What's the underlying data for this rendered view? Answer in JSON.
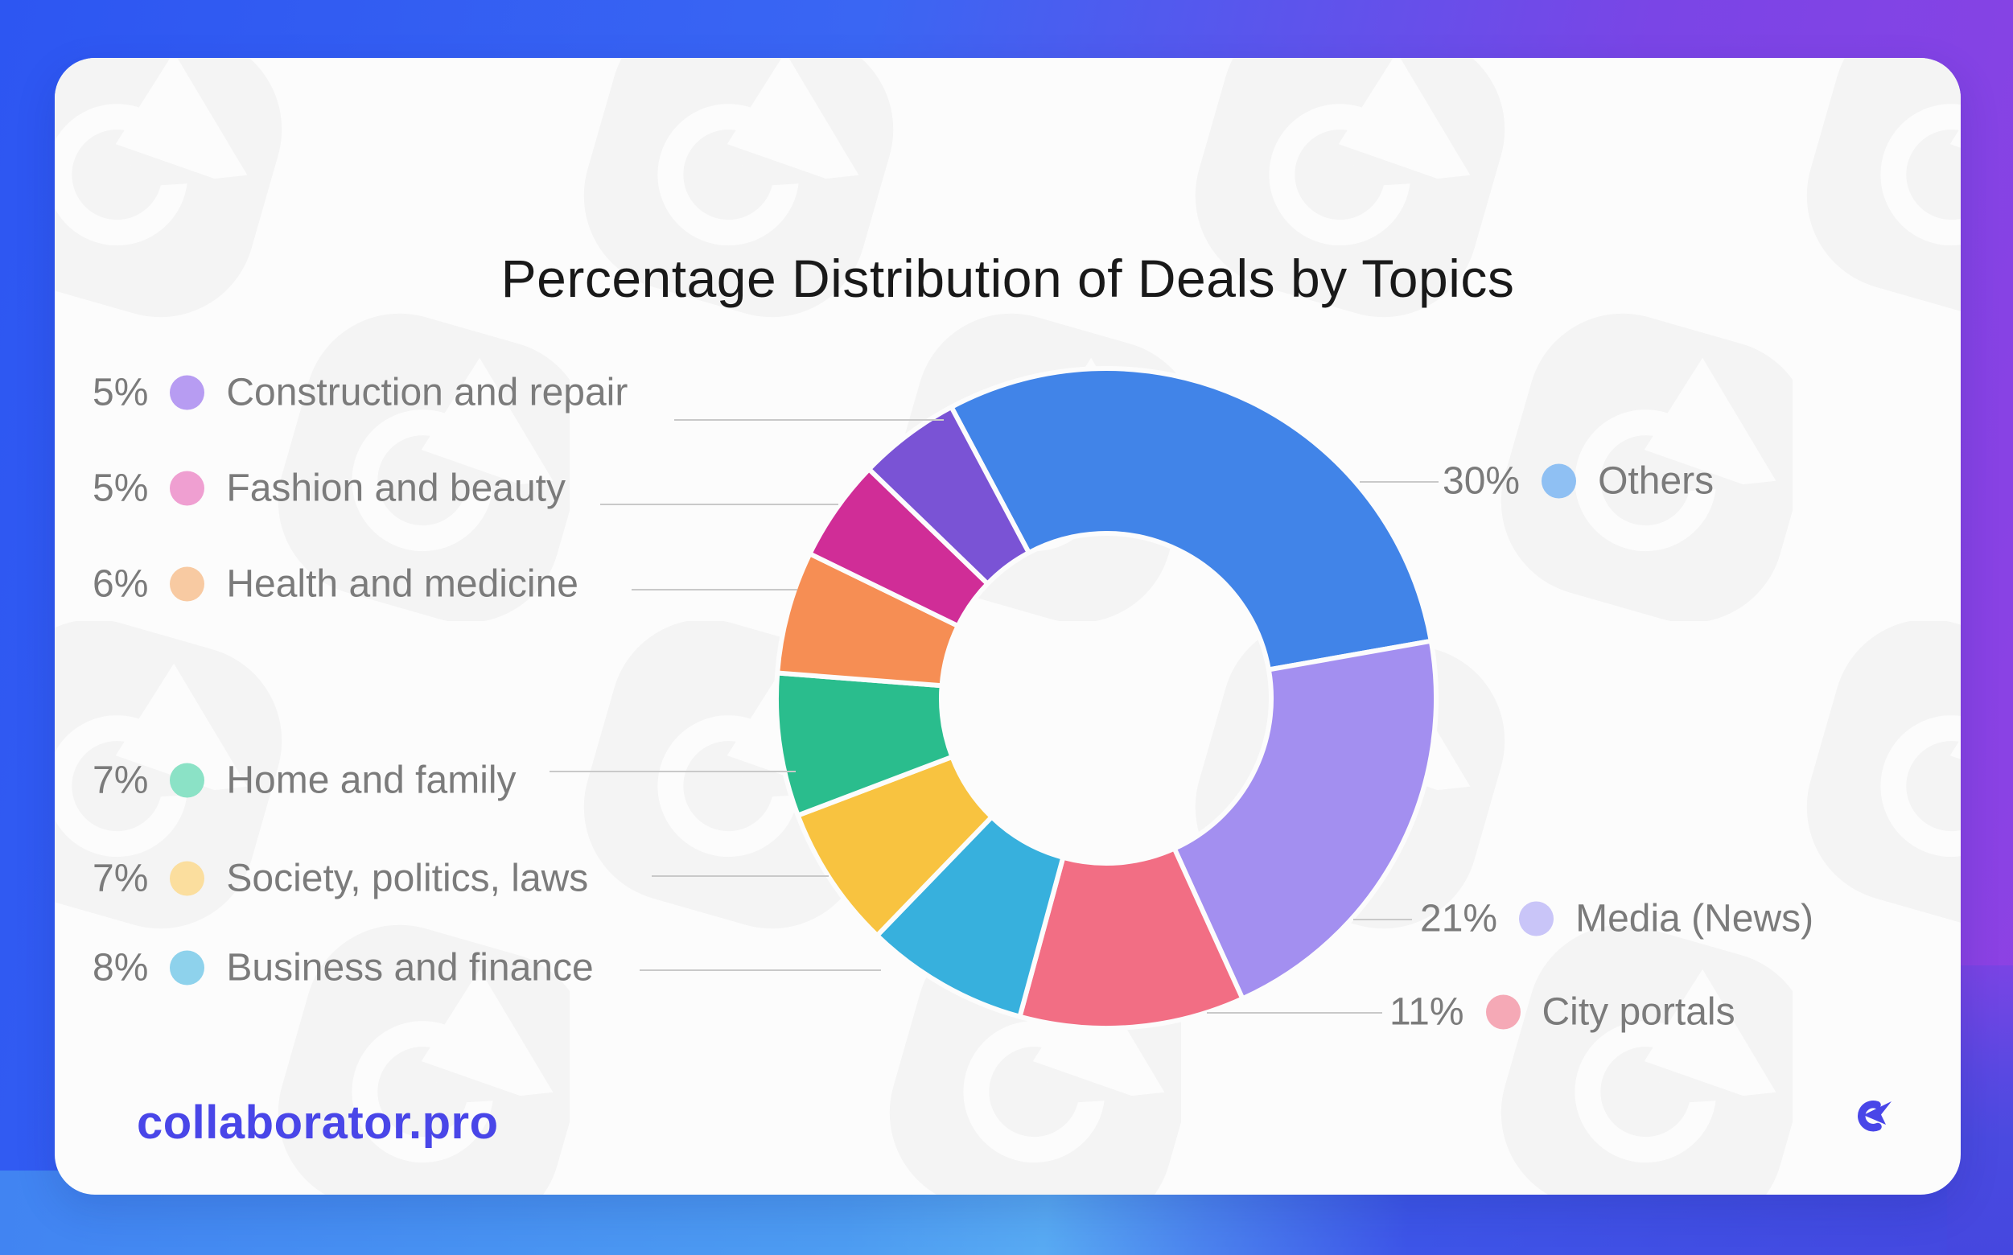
{
  "title": "Percentage Distribution of Deals by Topics",
  "footer": {
    "website": "collaborator.pro"
  },
  "colors": {
    "brand": "#4946e8",
    "card_bg": "#fcfcfc",
    "title_text": "#191919",
    "label_text": "#7b7b7b",
    "connector_line": "#c9c9c9",
    "bg_blue": "#2d56f2",
    "bg_purple": "#8e41e3",
    "bg_indigo": "#4547df",
    "bg_light_blue": "#58aaf3"
  },
  "chart_data": {
    "type": "donut",
    "title": "Percentage Distribution of Deals by Topics",
    "start_angle_deg": -28,
    "direction": "clockwise",
    "inner_radius_ratio": 0.5,
    "value_suffix": "%",
    "legend_position": "sides",
    "segments": [
      {
        "label": "Others",
        "value": 30,
        "percent_label": "30%",
        "color": "#4184e8",
        "dot_color": "#8fc0f3",
        "label_side": "right"
      },
      {
        "label": "Media (News)",
        "value": 21,
        "percent_label": "21%",
        "color": "#a38ff0",
        "dot_color": "#c9c5f8",
        "label_side": "right"
      },
      {
        "label": "City portals",
        "value": 11,
        "percent_label": "11%",
        "color": "#f26e84",
        "dot_color": "#f5a9b6",
        "label_side": "right"
      },
      {
        "label": "Business and finance",
        "value": 8,
        "percent_label": "8%",
        "color": "#37b0dd",
        "dot_color": "#8ed2ec",
        "label_side": "left"
      },
      {
        "label": "Society, politics, laws",
        "value": 7,
        "percent_label": "7%",
        "color": "#f8c340",
        "dot_color": "#fbde9e",
        "label_side": "left"
      },
      {
        "label": "Home and family",
        "value": 7,
        "percent_label": "7%",
        "color": "#2abd8d",
        "dot_color": "#8be2c6",
        "label_side": "left"
      },
      {
        "label": "Health and medicine",
        "value": 6,
        "percent_label": "6%",
        "color": "#f68e54",
        "dot_color": "#f8caa2",
        "label_side": "left"
      },
      {
        "label": "Fashion and beauty",
        "value": 5,
        "percent_label": "5%",
        "color": "#d02d97",
        "dot_color": "#ef9fd1",
        "label_side": "left"
      },
      {
        "label": "Construction and repair",
        "value": 5,
        "percent_label": "5%",
        "color": "#7a53d5",
        "dot_color": "#b79cf2",
        "label_side": "left"
      }
    ]
  }
}
